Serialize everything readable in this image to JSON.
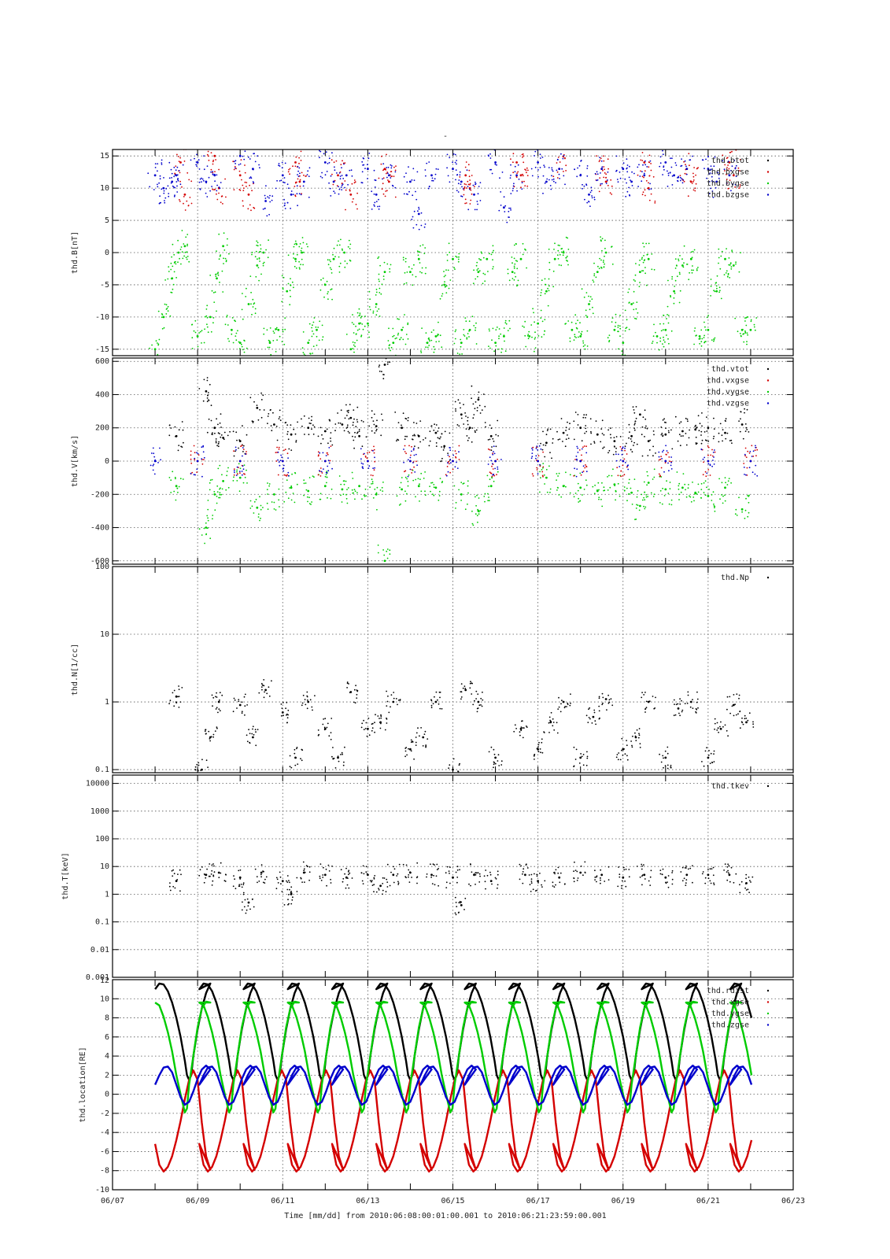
{
  "figure": {
    "top_mark": "-",
    "x_axis_title": "Time [mm/dd]  from 2010:06:08:00:01:00.001  to  2010:06:21:23:59:00.001",
    "x_tick_labels": [
      "06/07",
      "06/09",
      "06/11",
      "06/13",
      "06/15",
      "06/17",
      "06/19",
      "06/21",
      "06/23"
    ]
  },
  "colors": {
    "black": "#000000",
    "red": "#d40000",
    "green": "#00cc00",
    "blue": "#0000cc"
  },
  "chart_data": [
    {
      "type": "scatter",
      "ylabel": "thd.B[nT]",
      "xlim": [
        7,
        23
      ],
      "ylim": [
        -16,
        16
      ],
      "yticks": [
        -15,
        -10,
        -5,
        0,
        5,
        10,
        15
      ],
      "legend": [
        "thd.btot",
        "thd.bxgse",
        "thd.bygse",
        "thd.bzgse"
      ],
      "legend_position": "top-right",
      "series": [
        {
          "name": "thd.bygse",
          "color": "#00cc00",
          "x": [
            8.0,
            8.2,
            8.4,
            8.55,
            8.7,
            9.0,
            9.3,
            9.45,
            9.6,
            9.8,
            10.0,
            10.2,
            10.4,
            10.55,
            10.7,
            10.9,
            11.1,
            11.3,
            11.45,
            11.6,
            11.8,
            12.0,
            12.2,
            12.45,
            12.6,
            12.8,
            13.0,
            13.2,
            13.4,
            13.6,
            13.8,
            14.0,
            14.2,
            14.4,
            14.6,
            14.8,
            15.0,
            15.2,
            15.4,
            15.6,
            15.8,
            16.0,
            16.2,
            16.4,
            16.6,
            16.8,
            17.0,
            17.2,
            17.4,
            17.6,
            17.8,
            18.0,
            18.2,
            18.4,
            18.6,
            18.8,
            19.0,
            19.2,
            19.4,
            19.6,
            19.8,
            20.0,
            20.2,
            20.4,
            20.6,
            20.8,
            21.0,
            21.2,
            21.4,
            21.6,
            21.8,
            22.0
          ],
          "y": [
            -15,
            -10,
            -4,
            0,
            1,
            -13,
            -10,
            -4,
            1,
            -12,
            -14,
            -8,
            -2,
            0,
            -14,
            -12,
            -6,
            -1,
            0,
            -14,
            -12,
            -5,
            -1,
            0,
            -15,
            -11,
            -11,
            -8,
            -3,
            -14,
            -12,
            -3,
            -1,
            -14,
            -13,
            -5,
            -1,
            -14,
            -12,
            -3,
            -1,
            -14,
            -13,
            -3,
            -1,
            -13,
            -11,
            -6,
            -1,
            0,
            -12,
            -13,
            -8,
            -3,
            0,
            -12,
            -14,
            -8,
            -3,
            -1,
            -13,
            -12,
            -6,
            -2,
            -1,
            -13,
            -12,
            -6,
            -1,
            -2,
            -12,
            -12
          ]
        },
        {
          "name": "thd.bxgse",
          "color": "#d40000",
          "x": [
            8.6,
            8.7,
            9.4,
            9.5,
            10.0,
            10.2,
            11.3,
            11.4,
            12.3,
            12.6,
            13.4,
            13.5,
            15.3,
            15.4,
            16.5,
            16.6,
            17.5,
            18.5,
            18.6,
            19.5,
            19.6,
            20.5,
            20.6,
            21.5,
            21.6
          ],
          "y": [
            14,
            9,
            15,
            10,
            12,
            9,
            14,
            11,
            12,
            9,
            13,
            11,
            12,
            10,
            14,
            12,
            13,
            13,
            11,
            14,
            10,
            13,
            11,
            14,
            12
          ]
        },
        {
          "name": "thd.bzgse",
          "color": "#0000cc",
          "x": [
            8.0,
            8.2,
            8.4,
            8.5,
            9.0,
            9.2,
            9.4,
            10.0,
            10.3,
            10.6,
            11.0,
            11.2,
            11.5,
            12.0,
            12.2,
            12.5,
            13.0,
            13.2,
            13.5,
            14.0,
            14.2,
            14.5,
            15.0,
            15.2,
            15.5,
            16.0,
            16.2,
            16.5,
            17.0,
            17.2,
            17.5,
            18.0,
            18.2,
            18.5,
            19.0,
            19.2,
            19.5,
            20.0,
            20.2,
            20.5,
            21.0,
            21.2,
            21.5
          ],
          "y": [
            12,
            10,
            11,
            12,
            14,
            11,
            12,
            15,
            13,
            8,
            12,
            9,
            11,
            14,
            11,
            12,
            13,
            9,
            12,
            11,
            6,
            12,
            13,
            11,
            9,
            14,
            7,
            12,
            14,
            11,
            13,
            12,
            9,
            13,
            13,
            11,
            12,
            14,
            12,
            13,
            13,
            11,
            12
          ]
        }
      ]
    },
    {
      "type": "scatter",
      "ylabel": "thd.V[km/s]",
      "xlim": [
        7,
        23
      ],
      "ylim": [
        -620,
        620
      ],
      "yticks": [
        -600,
        -400,
        -200,
        0,
        200,
        400,
        600
      ],
      "legend": [
        "thd.vtot",
        "thd.vxgse",
        "thd.vygse",
        "thd.vzgse"
      ],
      "legend_position": "top-right",
      "series": [
        {
          "name": "thd.vtot",
          "color": "#000000",
          "x": [
            8.5,
            9.2,
            9.4,
            9.6,
            10.0,
            10.4,
            10.8,
            11.2,
            11.6,
            12.0,
            12.4,
            12.6,
            12.8,
            13.2,
            13.4,
            13.8,
            14.2,
            14.6,
            14.8,
            15.2,
            15.4,
            15.6,
            15.9,
            17.2,
            17.6,
            18.0,
            18.4,
            18.8,
            19.2,
            19.4,
            19.6,
            20.0,
            20.4,
            20.7,
            21.0,
            21.4,
            21.8
          ],
          "y": [
            150,
            420,
            200,
            140,
            120,
            320,
            220,
            160,
            200,
            180,
            220,
            260,
            150,
            210,
            580,
            200,
            150,
            170,
            90,
            280,
            200,
            370,
            150,
            110,
            170,
            200,
            160,
            120,
            150,
            280,
            120,
            160,
            180,
            190,
            200,
            170,
            220
          ]
        },
        {
          "name": "thd.vygse",
          "color": "#00cc00",
          "x": [
            8.5,
            9.2,
            9.4,
            9.6,
            10.0,
            10.4,
            10.8,
            11.2,
            11.6,
            12.0,
            12.4,
            12.8,
            13.2,
            13.4,
            13.8,
            14.2,
            14.6,
            15.2,
            15.6,
            15.9,
            17.2,
            17.6,
            18.0,
            18.4,
            18.8,
            19.2,
            19.4,
            19.6,
            20.0,
            20.4,
            20.7,
            21.0,
            21.4,
            21.8
          ],
          "y": [
            -150,
            -400,
            -200,
            -120,
            -100,
            -280,
            -200,
            -160,
            -180,
            -150,
            -170,
            -150,
            -200,
            -600,
            -170,
            -150,
            -160,
            -200,
            -300,
            -150,
            -100,
            -150,
            -160,
            -180,
            -140,
            -190,
            -270,
            -130,
            -170,
            -160,
            -190,
            -210,
            -160,
            -290
          ]
        },
        {
          "name": "thd.vxgse",
          "color": "#d40000",
          "x": [
            9.0,
            10.0,
            11.0,
            12.0,
            13.0,
            14.0,
            15.0,
            16.0,
            17.0,
            18.0,
            19.0,
            20.0,
            21.0,
            22.0
          ],
          "y": [
            0,
            0,
            0,
            0,
            0,
            0,
            0,
            0,
            0,
            0,
            0,
            0,
            0,
            0
          ]
        },
        {
          "name": "thd.vzgse",
          "color": "#0000cc",
          "x": [
            8.0,
            9.0,
            10.0,
            11.0,
            12.0,
            13.0,
            14.0,
            15.0,
            16.0,
            17.0,
            18.0,
            19.0,
            20.0,
            21.0,
            22.0
          ],
          "y": [
            0,
            0,
            0,
            0,
            0,
            0,
            0,
            0,
            0,
            0,
            0,
            0,
            0,
            0,
            0
          ]
        }
      ]
    },
    {
      "type": "scatter",
      "ylabel": "thd.N[1/cc]",
      "yscale": "log",
      "xlim": [
        7,
        23
      ],
      "ylim": [
        0.09,
        100
      ],
      "yticks": [
        0.1,
        1,
        10,
        100
      ],
      "legend": [
        "thd.Np"
      ],
      "legend_position": "top-right",
      "series": [
        {
          "name": "thd.Np",
          "color": "#000000",
          "x": [
            8.5,
            9.1,
            9.3,
            9.5,
            10.0,
            10.3,
            10.6,
            11.0,
            11.3,
            11.6,
            12.0,
            12.3,
            12.6,
            13.0,
            13.3,
            13.6,
            14.0,
            14.3,
            14.6,
            15.0,
            15.3,
            15.6,
            16.0,
            16.6,
            17.0,
            17.3,
            17.6,
            18.0,
            18.3,
            18.6,
            19.0,
            19.3,
            19.6,
            20.0,
            20.3,
            20.6,
            21.0,
            21.3,
            21.6,
            21.9
          ],
          "y": [
            1.2,
            0.1,
            0.3,
            1.0,
            0.9,
            0.3,
            1.5,
            0.7,
            0.15,
            1.0,
            0.4,
            0.15,
            1.4,
            0.4,
            0.5,
            1.0,
            0.2,
            0.3,
            1.0,
            0.1,
            1.5,
            1.0,
            0.15,
            0.4,
            0.2,
            0.5,
            1.0,
            0.15,
            0.6,
            1.1,
            0.2,
            0.3,
            1.0,
            0.15,
            0.8,
            1.0,
            0.15,
            0.4,
            0.9,
            0.5
          ]
        }
      ]
    },
    {
      "type": "scatter",
      "ylabel": "thd.T[keV]",
      "yscale": "log",
      "xlim": [
        7,
        23
      ],
      "ylim": [
        0.001,
        20000
      ],
      "yticks": [
        0.001,
        0.01,
        0.1,
        1,
        10,
        100,
        1000,
        10000
      ],
      "ytick_labels": [
        "0.001",
        "0.01",
        "0.1",
        "1",
        "10",
        "100",
        "1000",
        "10000"
      ],
      "legend": [
        "thd.tkev"
      ],
      "legend_position": "top-right",
      "series": [
        {
          "name": "thd.tkev",
          "color": "#000000",
          "x": [
            8.5,
            9.2,
            9.5,
            10.0,
            10.2,
            10.5,
            11.0,
            11.2,
            11.5,
            12.0,
            12.5,
            13.0,
            13.3,
            13.6,
            14.0,
            14.5,
            15.0,
            15.2,
            15.5,
            15.9,
            16.7,
            17.0,
            17.5,
            18.0,
            18.5,
            19.0,
            19.5,
            20.0,
            20.5,
            21.0,
            21.5,
            21.9
          ],
          "y": [
            3,
            5,
            6,
            4,
            0.5,
            6,
            3,
            1,
            6,
            5,
            4,
            5,
            2,
            5,
            6,
            5,
            4,
            0.4,
            5,
            3,
            5,
            3,
            4,
            6,
            5,
            4,
            5,
            4,
            5,
            5,
            5,
            2.5
          ]
        }
      ]
    },
    {
      "type": "line",
      "ylabel": "thd.location[RE]",
      "xlim": [
        7,
        23
      ],
      "ylim": [
        -10,
        12
      ],
      "yticks": [
        -10,
        -8,
        -6,
        -4,
        -2,
        0,
        2,
        4,
        6,
        8,
        10
      ],
      "ytick_top": "12",
      "legend": [
        "thd.rdist",
        "thd.xgse",
        "thd.ygse",
        "thd.zgse"
      ],
      "legend_position": "top-right",
      "orbit_period_days": 1.0,
      "series": [
        {
          "name": "thd.rdist",
          "color": "#000000",
          "x": [
            8.0,
            8.1,
            8.2,
            8.3,
            8.4,
            8.5,
            8.6,
            8.7,
            8.75,
            8.8,
            8.85,
            8.9,
            9.0,
            9.1,
            9.2,
            9.3
          ],
          "y": [
            11,
            11.6,
            11.5,
            10.8,
            9.6,
            8,
            6,
            3.5,
            2,
            1.5,
            2,
            4,
            6.8,
            9,
            10.6,
            11.6
          ]
        },
        {
          "name": "thd.xgse",
          "color": "#d40000",
          "x": [
            8.0,
            8.1,
            8.2,
            8.3,
            8.4,
            8.5,
            8.6,
            8.7,
            8.8,
            8.9,
            9.0,
            9.1,
            9.2,
            9.3
          ],
          "y": [
            -5.2,
            -7.4,
            -8.1,
            -7.6,
            -6.5,
            -4.8,
            -2.8,
            -0.5,
            1.5,
            2.5,
            1.5,
            -3,
            -6.5,
            -7.9
          ]
        },
        {
          "name": "thd.ygse",
          "color": "#00cc00",
          "x": [
            8.0,
            8.1,
            8.2,
            8.3,
            8.4,
            8.5,
            8.6,
            8.7,
            8.75,
            8.8,
            8.9,
            9.0,
            9.1,
            9.2,
            9.3
          ],
          "y": [
            9.6,
            9.3,
            8.1,
            6.5,
            4.5,
            2,
            0,
            -1.9,
            -1.5,
            1,
            4,
            7,
            9,
            9.7,
            9.6
          ]
        },
        {
          "name": "thd.zgse",
          "color": "#0000cc",
          "x": [
            8.0,
            8.1,
            8.2,
            8.3,
            8.4,
            8.5,
            8.6,
            8.7,
            8.8,
            8.9,
            9.0,
            9.1,
            9.2,
            9.3
          ],
          "y": [
            1.0,
            2.0,
            2.8,
            2.9,
            2.3,
            1.0,
            -0.3,
            -1.1,
            -0.8,
            0.3,
            1.6,
            2.6,
            3.0,
            2.6
          ]
        }
      ]
    }
  ]
}
